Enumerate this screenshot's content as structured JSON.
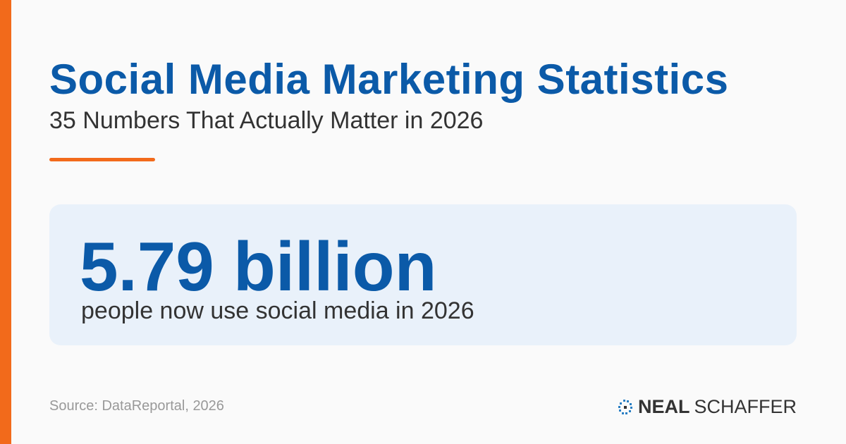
{
  "header": {
    "title": "Social Media Marketing Statistics",
    "subtitle": "35 Numbers That Actually Matter in 2026"
  },
  "stat": {
    "value": "5.79 billion",
    "description": "people now use social media in 2026"
  },
  "footer": {
    "source": "Source: DataReportal, 2026",
    "logo": {
      "first": "NEAL",
      "second": "SCHAFFER"
    }
  }
}
